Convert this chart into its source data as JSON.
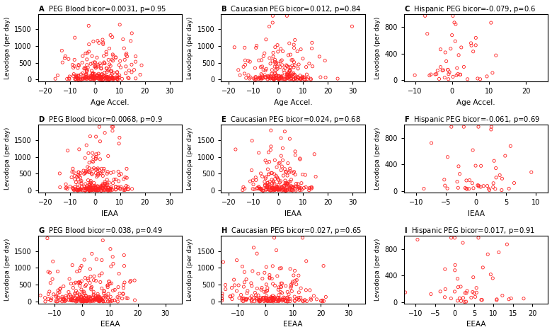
{
  "panels": [
    {
      "label": "A",
      "title_rest": "PEG Blood bicor=0.0031, p=0.95",
      "xlabel": "Age Accel.",
      "ylabel": "Levodopa (per day)",
      "xlim": [
        -23,
        35
      ],
      "ylim": [
        -60,
        1950
      ],
      "xticks": [
        -20,
        -10,
        0,
        10,
        20,
        30
      ],
      "yticks": [
        0,
        500,
        1000,
        1500
      ],
      "n_points": 250,
      "x_mean": 1.0,
      "x_std": 7.0,
      "seed": 1
    },
    {
      "label": "B",
      "title_rest": "Caucasian PEG bicor=0.012, p=0.84",
      "xlabel": "Age Accel.",
      "ylabel": "Levodopa (per day)",
      "xlim": [
        -23,
        35
      ],
      "ylim": [
        -60,
        1950
      ],
      "xticks": [
        -20,
        -10,
        0,
        10,
        20,
        30
      ],
      "yticks": [
        0,
        500,
        1000,
        1500
      ],
      "n_points": 210,
      "x_mean": 1.0,
      "x_std": 7.0,
      "seed": 2
    },
    {
      "label": "C",
      "title_rest": "Hispanic PEG bicor=-0.079, p=0.6",
      "xlabel": "Age Accel.",
      "ylabel": "Levodopa (per day)",
      "xlim": [
        -13,
        26
      ],
      "ylim": [
        -25,
        1000
      ],
      "xticks": [
        -10,
        0,
        10,
        20
      ],
      "yticks": [
        0,
        400,
        800
      ],
      "n_points": 48,
      "x_mean": 2.0,
      "x_std": 5.0,
      "seed": 3
    },
    {
      "label": "D",
      "title_rest": "PEG Blood bicor=0.0068, p=0.9",
      "xlabel": "IEAA",
      "ylabel": "Levodopa (per day)",
      "xlim": [
        -23,
        35
      ],
      "ylim": [
        -60,
        1950
      ],
      "xticks": [
        -20,
        -10,
        0,
        10,
        20,
        30
      ],
      "yticks": [
        0,
        500,
        1000,
        1500
      ],
      "n_points": 250,
      "x_mean": 0.0,
      "x_std": 6.0,
      "seed": 4
    },
    {
      "label": "E",
      "title_rest": "Caucasian PEG bicor=0.024, p=0.68",
      "xlabel": "IEAA",
      "ylabel": "Levodopa (per day)",
      "xlim": [
        -23,
        35
      ],
      "ylim": [
        -60,
        1950
      ],
      "xticks": [
        -20,
        -10,
        0,
        10,
        20,
        30
      ],
      "yticks": [
        0,
        500,
        1000,
        1500
      ],
      "n_points": 210,
      "x_mean": 0.0,
      "x_std": 6.0,
      "seed": 5
    },
    {
      "label": "F",
      "title_rest": "Hispanic PEG bicor=-0.061, p=0.69",
      "xlabel": "IEAA",
      "ylabel": "Levodopa (per day)",
      "xlim": [
        -12,
        12
      ],
      "ylim": [
        -25,
        1000
      ],
      "xticks": [
        -10,
        -5,
        0,
        5,
        10
      ],
      "yticks": [
        0,
        400,
        800
      ],
      "n_points": 48,
      "x_mean": 0.0,
      "x_std": 3.5,
      "seed": 6
    },
    {
      "label": "G",
      "title_rest": "PEG Blood bicor=0.038, p=0.49",
      "xlabel": "EEAA",
      "ylabel": "Levodopa (per day)",
      "xlim": [
        -16,
        36
      ],
      "ylim": [
        -60,
        1950
      ],
      "xticks": [
        -10,
        0,
        10,
        20,
        30
      ],
      "yticks": [
        0,
        500,
        1000,
        1500
      ],
      "n_points": 250,
      "x_mean": 2.0,
      "x_std": 7.5,
      "seed": 7
    },
    {
      "label": "H",
      "title_rest": "Caucasian PEG bicor=0.027, p=0.65",
      "xlabel": "EEAA",
      "ylabel": "Levodopa (per day)",
      "xlim": [
        -16,
        36
      ],
      "ylim": [
        -60,
        1950
      ],
      "xticks": [
        -10,
        0,
        10,
        20,
        30
      ],
      "yticks": [
        0,
        500,
        1000,
        1500
      ],
      "n_points": 210,
      "x_mean": 2.0,
      "x_std": 7.5,
      "seed": 8
    },
    {
      "label": "I",
      "title_rest": "Hispanic PEG bicor=0.017, p=0.91",
      "xlabel": "EEAA",
      "ylabel": "Levodopa (per day)",
      "xlim": [
        -13,
        24
      ],
      "ylim": [
        -25,
        1000
      ],
      "xticks": [
        -10,
        -5,
        0,
        5,
        10,
        15,
        20
      ],
      "yticks": [
        0,
        400,
        800
      ],
      "n_points": 48,
      "x_mean": 3.0,
      "x_std": 6.0,
      "seed": 9
    }
  ],
  "marker_color": "#FF2222",
  "marker_size": 3.0,
  "marker_lw": 0.6,
  "title_fontsize": 7.2,
  "label_fontsize": 7.5,
  "tick_fontsize": 7.0,
  "background_color": "#FFFFFF"
}
